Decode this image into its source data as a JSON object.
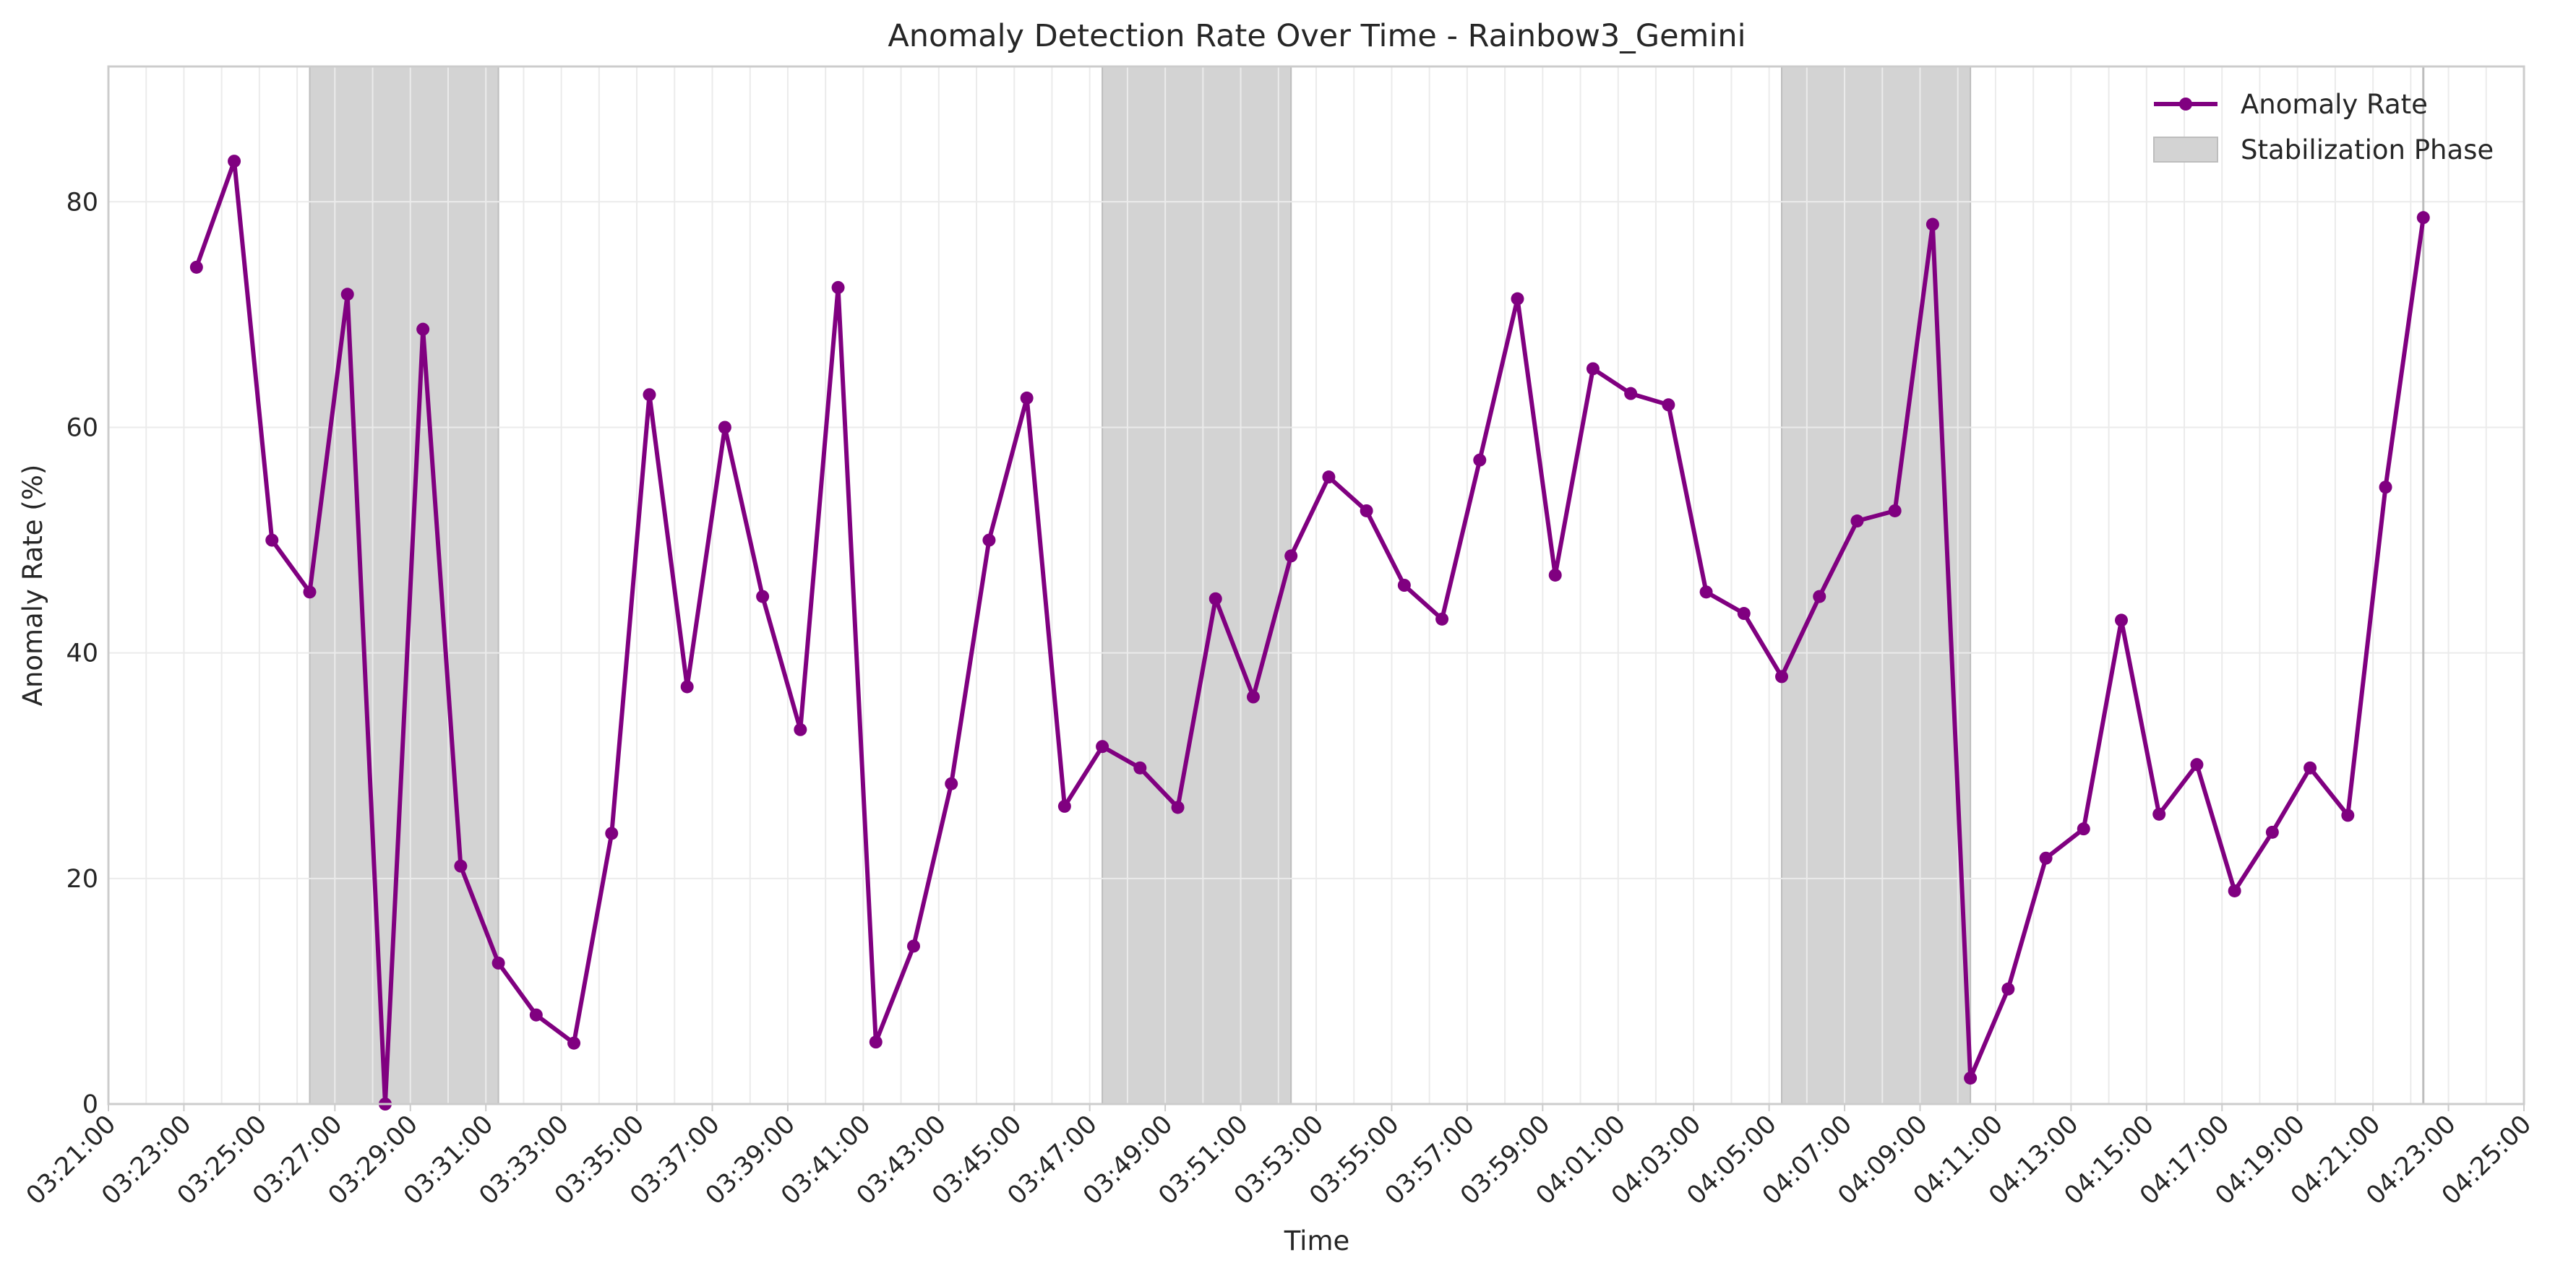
{
  "chart_data": {
    "type": "line",
    "title": "Anomaly Detection Rate Over Time - Rainbow3_Gemini",
    "xlabel": "Time",
    "ylabel": "Anomaly Rate (%)",
    "xlim": [
      "03:21:00",
      "04:25:00"
    ],
    "ylim": [
      0,
      92
    ],
    "yticks": [
      0,
      20,
      40,
      60,
      80
    ],
    "xticks": [
      "03:21:00",
      "03:23:00",
      "03:25:00",
      "03:27:00",
      "03:29:00",
      "03:31:00",
      "03:33:00",
      "03:35:00",
      "03:37:00",
      "03:39:00",
      "03:41:00",
      "03:43:00",
      "03:45:00",
      "03:47:00",
      "03:49:00",
      "03:51:00",
      "03:53:00",
      "03:55:00",
      "03:57:00",
      "03:59:00",
      "04:01:00",
      "04:03:00",
      "04:05:00",
      "04:07:00",
      "04:09:00",
      "04:11:00",
      "04:13:00",
      "04:15:00",
      "04:17:00",
      "04:19:00",
      "04:21:00",
      "04:23:00",
      "04:25:00"
    ],
    "grid": true,
    "legend_position": "top-right",
    "colors": {
      "line": "#800080",
      "band": "#d3d3d3",
      "band_edge": "#bdbdbd",
      "grid": "#ebebeb",
      "axis": "#cccccc",
      "text": "#262626"
    },
    "series": [
      {
        "name": "Anomaly Rate",
        "points": [
          [
            "03:23:20",
            74.2
          ],
          [
            "03:24:20",
            83.6
          ],
          [
            "03:25:20",
            50.0
          ],
          [
            "03:26:20",
            45.4
          ],
          [
            "03:27:20",
            71.8
          ],
          [
            "03:28:20",
            0.0
          ],
          [
            "03:29:20",
            68.7
          ],
          [
            "03:30:20",
            21.1
          ],
          [
            "03:31:20",
            12.5
          ],
          [
            "03:32:20",
            7.9
          ],
          [
            "03:33:20",
            5.4
          ],
          [
            "03:34:20",
            24.0
          ],
          [
            "03:35:20",
            62.9
          ],
          [
            "03:36:20",
            37.0
          ],
          [
            "03:37:20",
            60.0
          ],
          [
            "03:38:20",
            45.0
          ],
          [
            "03:39:20",
            33.2
          ],
          [
            "03:40:20",
            72.4
          ],
          [
            "03:41:20",
            5.5
          ],
          [
            "03:42:20",
            14.0
          ],
          [
            "03:43:20",
            28.4
          ],
          [
            "03:44:20",
            50.0
          ],
          [
            "03:45:20",
            62.6
          ],
          [
            "03:46:20",
            26.4
          ],
          [
            "03:47:20",
            31.7
          ],
          [
            "03:48:20",
            29.8
          ],
          [
            "03:49:20",
            26.3
          ],
          [
            "03:50:20",
            44.8
          ],
          [
            "03:51:20",
            36.1
          ],
          [
            "03:52:20",
            48.6
          ],
          [
            "03:53:20",
            55.6
          ],
          [
            "03:54:20",
            52.6
          ],
          [
            "03:55:20",
            46.0
          ],
          [
            "03:56:20",
            43.0
          ],
          [
            "03:57:20",
            57.1
          ],
          [
            "03:58:20",
            71.4
          ],
          [
            "03:59:20",
            46.9
          ],
          [
            "04:00:20",
            65.2
          ],
          [
            "04:01:20",
            63.0
          ],
          [
            "04:02:20",
            62.0
          ],
          [
            "04:03:20",
            45.4
          ],
          [
            "04:04:20",
            43.5
          ],
          [
            "04:05:20",
            37.9
          ],
          [
            "04:06:20",
            45.0
          ],
          [
            "04:07:20",
            51.7
          ],
          [
            "04:08:20",
            52.6
          ],
          [
            "04:09:20",
            78.0
          ],
          [
            "04:10:20",
            2.3
          ],
          [
            "04:11:20",
            10.2
          ],
          [
            "04:12:20",
            21.8
          ],
          [
            "04:13:20",
            24.4
          ],
          [
            "04:14:20",
            42.9
          ],
          [
            "04:15:20",
            25.7
          ],
          [
            "04:16:20",
            30.1
          ],
          [
            "04:17:20",
            18.9
          ],
          [
            "04:18:20",
            24.1
          ],
          [
            "04:19:20",
            29.8
          ],
          [
            "04:20:20",
            25.6
          ],
          [
            "04:21:20",
            54.7
          ],
          [
            "04:22:20",
            78.6
          ]
        ]
      }
    ],
    "bands": [
      {
        "name": "Stabilization Phase",
        "start": "03:26:20",
        "end": "03:31:20"
      },
      {
        "name": "Stabilization Phase",
        "start": "03:47:20",
        "end": "03:52:20"
      },
      {
        "name": "Stabilization Phase",
        "start": "04:05:20",
        "end": "04:10:20"
      }
    ],
    "vertical_lines": [
      "04:22:20"
    ],
    "legend": [
      {
        "label": "Anomaly Rate",
        "kind": "line"
      },
      {
        "label": "Stabilization Phase",
        "kind": "patch"
      }
    ]
  }
}
